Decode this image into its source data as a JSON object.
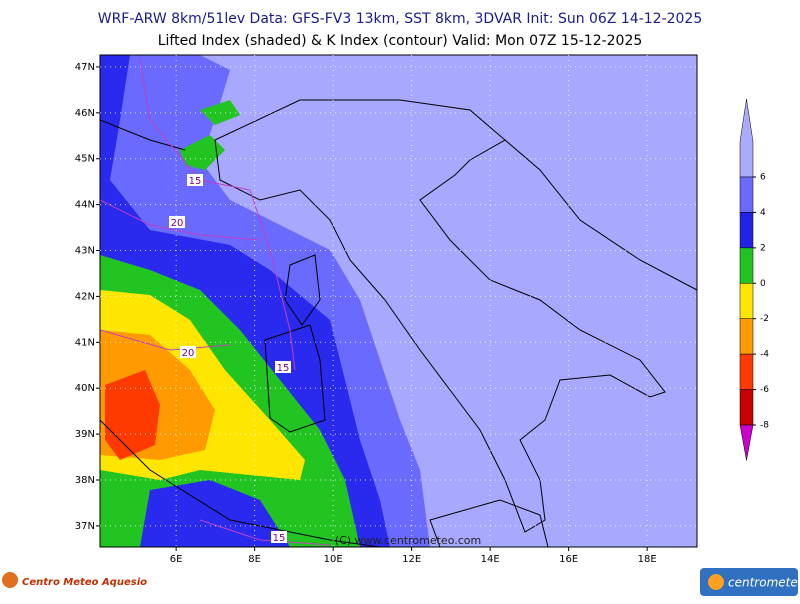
{
  "header": {
    "title": "WRF-ARW 8km/51lev  Data: GFS-FV3 13km, SST 8km, 3DVAR  Init: Sun 06Z 14-12-2025",
    "subtitle": "Lifted Index (shaded) & K Index (contour)  Valid: Mon 07Z 15-12-2025"
  },
  "map": {
    "latlim": [
      36.54,
      47.26
    ],
    "lonlim": [
      4.06,
      19.27
    ],
    "lat_ticks": [
      {
        "value": 47,
        "label": "47N"
      },
      {
        "value": 46,
        "label": "46N"
      },
      {
        "value": 45,
        "label": "45N"
      },
      {
        "value": 44,
        "label": "44N"
      },
      {
        "value": 43,
        "label": "43N"
      },
      {
        "value": 42,
        "label": "42N"
      },
      {
        "value": 41,
        "label": "41N"
      },
      {
        "value": 40,
        "label": "40N"
      },
      {
        "value": 39,
        "label": "39N"
      },
      {
        "value": 38,
        "label": "38N"
      },
      {
        "value": 37,
        "label": "37N"
      }
    ],
    "lon_ticks": [
      {
        "value": 6,
        "label": "6E"
      },
      {
        "value": 8,
        "label": "8E"
      },
      {
        "value": 10,
        "label": "10E"
      },
      {
        "value": 12,
        "label": "12E"
      },
      {
        "value": 14,
        "label": "14E"
      },
      {
        "value": 16,
        "label": "16E"
      },
      {
        "value": 18,
        "label": "18E"
      }
    ],
    "contour_labels": [
      "15",
      "20",
      "20",
      "15",
      "15"
    ],
    "copyright": "(C) www.centrometeo.com"
  },
  "colorbar": {
    "clim": [
      -8,
      6
    ],
    "ticks": [
      6,
      4,
      2,
      0,
      -2,
      -4,
      -6,
      -8
    ],
    "colors": [
      "#aaaaff",
      "#6a6aff",
      "#2222e6",
      "#22c422",
      "#ffe600",
      "#ff9a00",
      "#ff3a00",
      "#c80000",
      "#cc00cc"
    ]
  },
  "footer": {
    "left_logo": "Centro Meteo Aquesio",
    "right_logo": "centrometeo"
  }
}
